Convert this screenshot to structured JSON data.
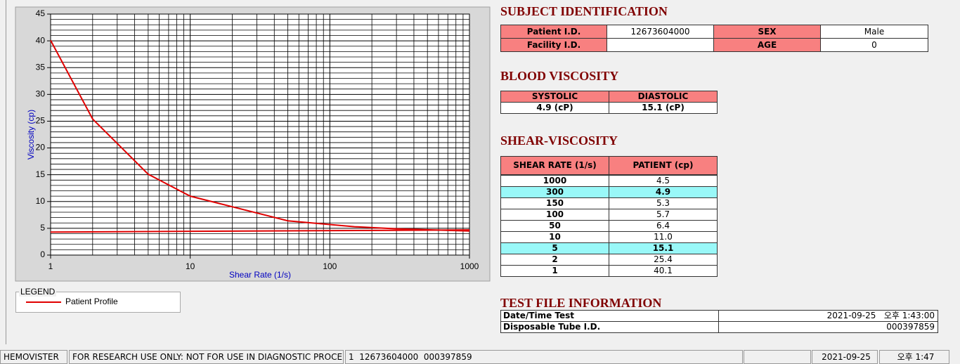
{
  "chart_data": {
    "type": "line",
    "y_label": "Viscosity (cp)",
    "x_label": "Shear Rate (1/s)",
    "xscale": "log",
    "xlim": [
      1,
      1000
    ],
    "xticks": [
      1,
      10,
      100,
      1000
    ],
    "ylim": [
      0,
      45
    ],
    "yticks": [
      0,
      5,
      10,
      15,
      20,
      25,
      30,
      35,
      40,
      45
    ],
    "grid": true,
    "minor_grid": true,
    "legend_title": "LEGEND",
    "series": [
      {
        "name": "Patient Profile",
        "color": "#e00000",
        "x": [
          1,
          2,
          5,
          10,
          50,
          100,
          150,
          300,
          1000
        ],
        "values": [
          40.1,
          25.4,
          15.1,
          11.0,
          6.4,
          5.7,
          5.3,
          4.9,
          4.5
        ]
      },
      {
        "color": "#e00000",
        "x": [
          1,
          1000
        ],
        "values": [
          4.3,
          4.7
        ]
      }
    ]
  },
  "subject_identification": {
    "title": "SUBJECT IDENTIFICATION",
    "rows": [
      [
        "Patient I.D.",
        "12673604000",
        "SEX",
        "Male"
      ],
      [
        "Facility I.D.",
        null,
        "AGE",
        "0"
      ]
    ]
  },
  "blood_viscosity": {
    "title": "BLOOD VISCOSITY",
    "headers": [
      "SYSTOLIC",
      "DIASTOLIC"
    ],
    "values": [
      "4.9 (cP)",
      "15.1 (cP)"
    ]
  },
  "shear_viscosity": {
    "title": "SHEAR-VISCOSITY",
    "headers": [
      "SHEAR RATE (1/s)",
      "PATIENT (cp)"
    ],
    "highlight_rows": [
      1,
      6
    ],
    "rows": [
      [
        "1000",
        "4.5"
      ],
      [
        "300",
        "4.9"
      ],
      [
        "150",
        "5.3"
      ],
      [
        "100",
        "5.7"
      ],
      [
        "50",
        "6.4"
      ],
      [
        "10",
        "11.0"
      ],
      [
        "5",
        "15.1"
      ],
      [
        "2",
        "25.4"
      ],
      [
        "1",
        "40.1"
      ]
    ]
  },
  "test_file": {
    "title": "TEST FILE INFORMATION",
    "rows": [
      [
        "Date/Time Test",
        "2021-09-25   오후 1:43:00"
      ],
      [
        "Disposable Tube I.D.",
        "000397859"
      ]
    ]
  },
  "status_bar": [
    "HEMOVISTER",
    "FOR RESEARCH USE ONLY: NOT FOR USE IN DIAGNOSTIC PROCEDURES",
    "1  12673604000  000397859",
    null,
    "2021-09-25",
    "오후 1:47"
  ]
}
